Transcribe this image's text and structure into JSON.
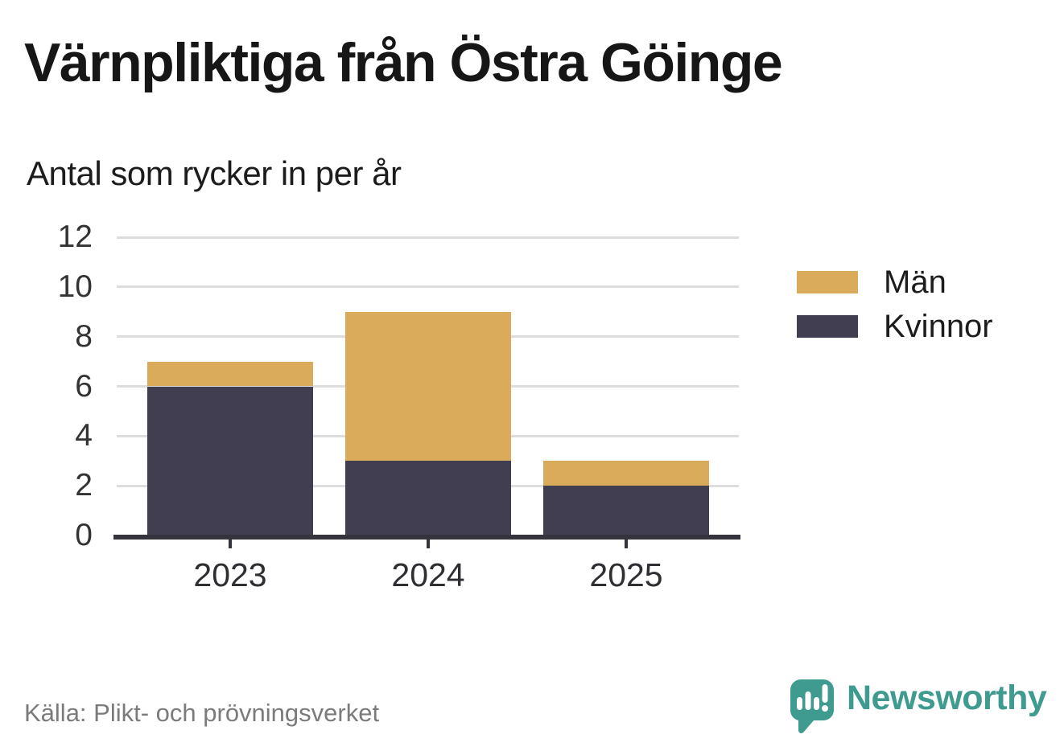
{
  "header": {
    "title": "Värnpliktiga från Östra Göinge",
    "subtitle": "Antal som rycker in per år"
  },
  "chart_data": {
    "type": "bar",
    "stacked": true,
    "title": "Värnpliktiga från Östra Göinge",
    "subtitle": "Antal som rycker in per år",
    "categories": [
      "2023",
      "2024",
      "2025"
    ],
    "series": [
      {
        "name": "Kvinnor",
        "color": "#413e51",
        "values": [
          6,
          3,
          2
        ]
      },
      {
        "name": "Män",
        "color": "#d9ab5a",
        "values": [
          1,
          6,
          1
        ]
      }
    ],
    "totals": [
      7,
      9,
      3
    ],
    "xlabel": "",
    "ylabel": "",
    "ylim": [
      0,
      12
    ],
    "yticks": [
      0,
      2,
      4,
      6,
      8,
      10,
      12
    ],
    "grid": true,
    "legend_position": "right"
  },
  "legend": {
    "items": [
      {
        "label": "Män",
        "color": "#d9ab5a"
      },
      {
        "label": "Kvinnor",
        "color": "#413e51"
      }
    ]
  },
  "footer": {
    "source": "Källa: Plikt- och prövningsverket",
    "brand": "Newsworthy"
  },
  "colors": {
    "men": "#d9ab5a",
    "women": "#413e51",
    "axis": "#35333e",
    "gridline": "#dddddd",
    "brand_teal": "#3f9b90",
    "source_gray": "#7b7b7b"
  }
}
